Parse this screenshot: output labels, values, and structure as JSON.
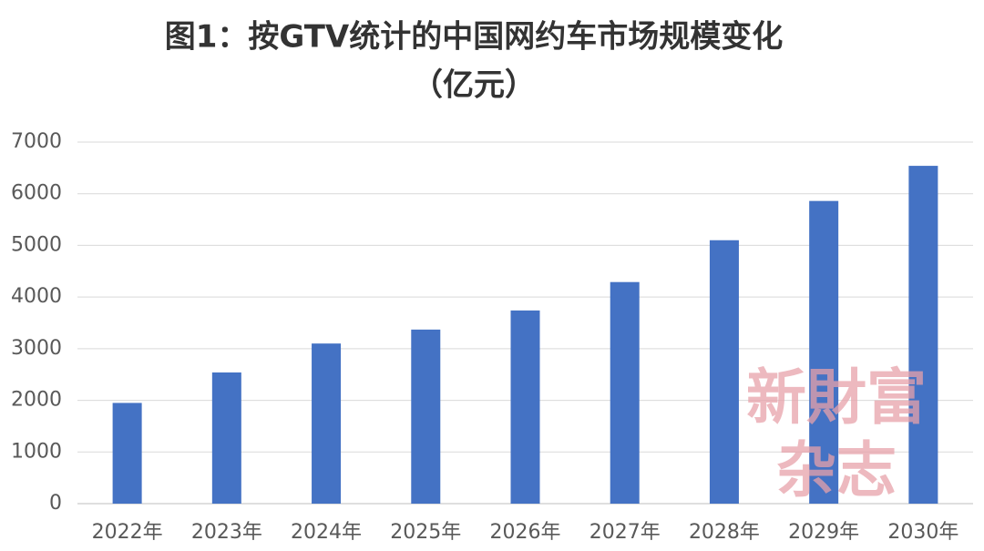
{
  "chart_data": {
    "type": "bar",
    "title": "图1：按GTV统计的中国网约车市场规模变化",
    "subtitle": "（亿元）",
    "categories": [
      "2022年",
      "2023年",
      "2024年",
      "2025年",
      "2026年",
      "2027年",
      "2028年",
      "2029年",
      "2030年"
    ],
    "values": [
      1950,
      2540,
      3100,
      3370,
      3740,
      4290,
      5100,
      5860,
      6540
    ],
    "color": "#4472c4",
    "ylim": [
      0,
      7000
    ],
    "yticks": [
      0,
      1000,
      2000,
      3000,
      4000,
      5000,
      6000,
      7000
    ],
    "grid": true
  },
  "watermark": [
    "新財富",
    "杂志"
  ]
}
